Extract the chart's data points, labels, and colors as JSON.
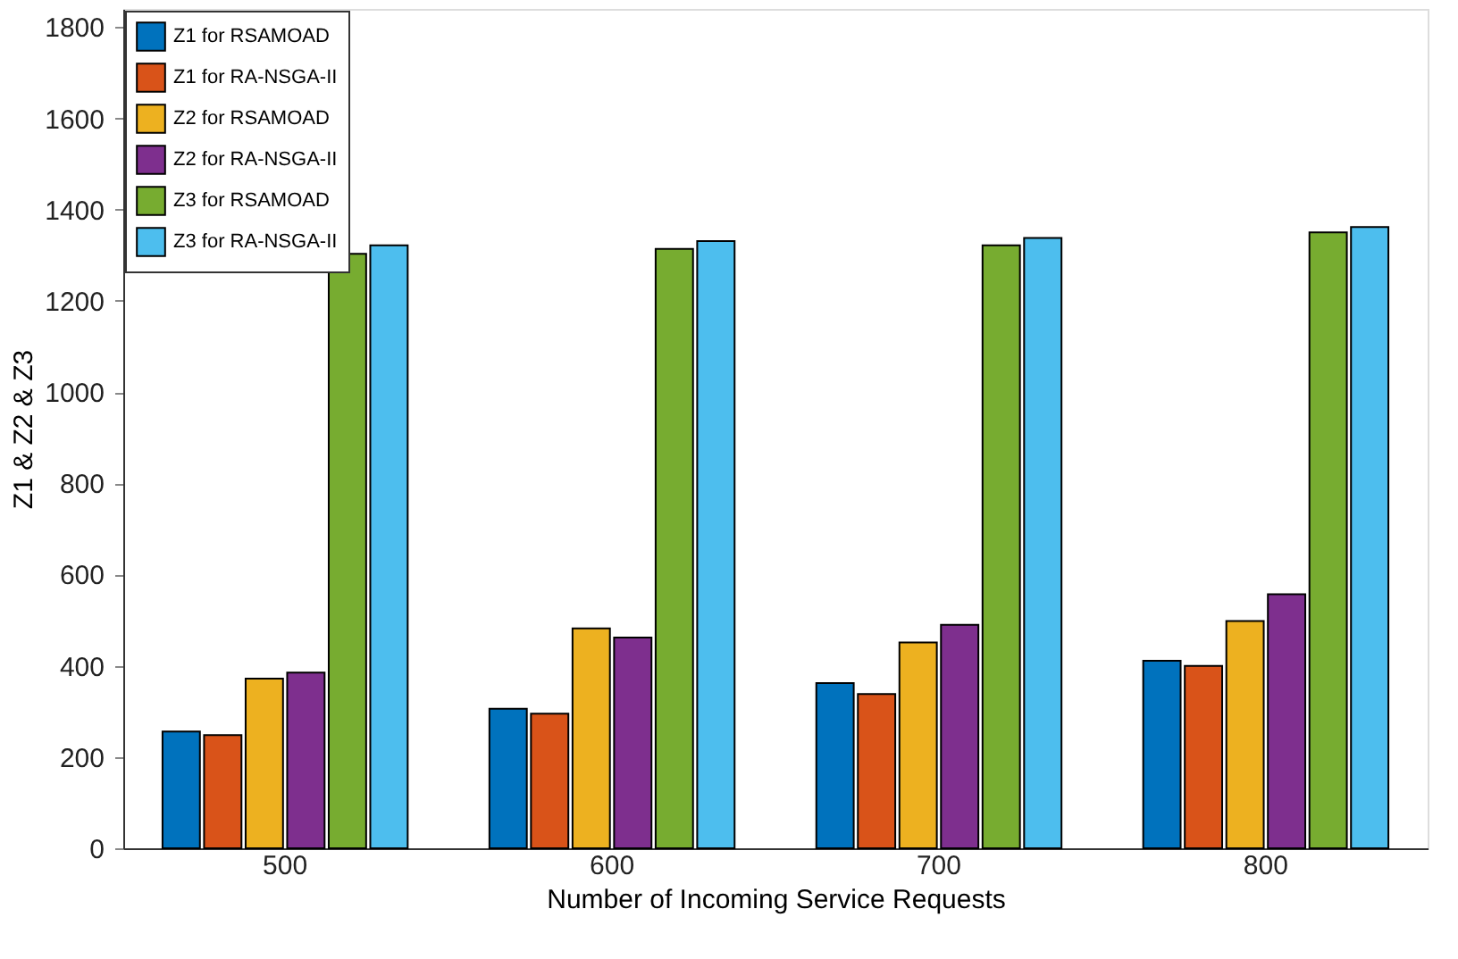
{
  "chart_data": {
    "type": "bar",
    "xlabel": "Number of Incoming Service Requests",
    "ylabel": "Z1 & Z2 & Z3",
    "categories": [
      "500",
      "600",
      "700",
      "800"
    ],
    "series": [
      {
        "name": "Z1 for RSAMOAD",
        "color": "#0072bd",
        "values": [
          256,
          306,
          362,
          411
        ]
      },
      {
        "name": "Z1 for RA-NSGA-II",
        "color": "#d95319",
        "values": [
          248,
          295,
          338,
          400
        ]
      },
      {
        "name": "Z2 for RSAMOAD",
        "color": "#edb120",
        "values": [
          372,
          482,
          451,
          498
        ]
      },
      {
        "name": "Z2 for RA-NSGA-II",
        "color": "#7e2f8e",
        "values": [
          385,
          462,
          490,
          557
        ]
      },
      {
        "name": "Z3 for RSAMOAD",
        "color": "#77ac30",
        "values": [
          1303,
          1314,
          1322,
          1350
        ]
      },
      {
        "name": "Z3 for RA-NSGA-II",
        "color": "#4dbeee",
        "values": [
          1322,
          1331,
          1338,
          1362
        ]
      }
    ],
    "ylim": [
      0,
      1840
    ],
    "yticks": [
      0,
      200,
      400,
      600,
      800,
      1000,
      1200,
      1400,
      1600,
      1800
    ],
    "grid": false,
    "legend": "top left"
  }
}
